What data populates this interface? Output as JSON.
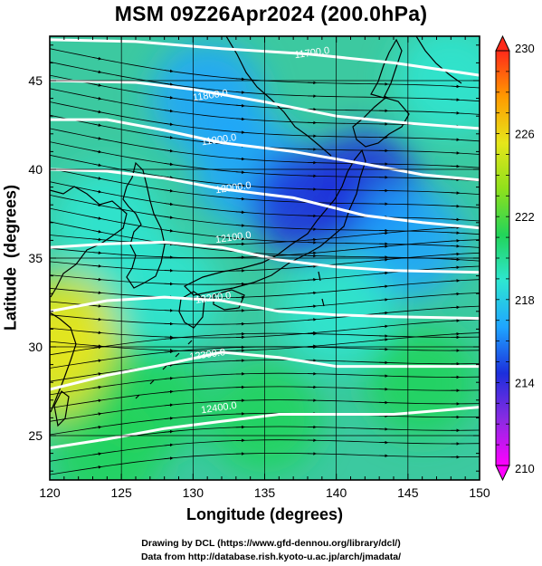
{
  "page": {
    "title": "MSM 09Z26Apr2024 (200.0hPa)",
    "credit_line1": "Drawing by DCL (https://www.gfd-dennou.org/library/dcl/)",
    "credit_line2": "Data from http://database.rish.kyoto-u.ac.jp/arch/jmadata/"
  },
  "chart_data": {
    "type": "heatmap",
    "title": "MSM 09Z26Apr2024 (200.0hPa)",
    "xlabel": "Longitude (degrees)",
    "ylabel": "Latitude  (degrees)",
    "xlim": [
      120,
      150
    ],
    "ylim": [
      22.5,
      47.5
    ],
    "x_ticks": [
      120,
      125,
      130,
      135,
      140,
      145,
      150
    ],
    "y_ticks": [
      25,
      30,
      35,
      40,
      45
    ],
    "grid": true,
    "colorbar": {
      "range": [
        210,
        230
      ],
      "ticks": [
        210,
        214,
        218,
        222,
        226,
        230
      ],
      "colors": [
        "#ff00ff",
        "#8a2be2",
        "#1c2fdc",
        "#1fa5ff",
        "#2ee6d2",
        "#22d45a",
        "#8fe01c",
        "#e6e61a",
        "#ff9a00",
        "#ff2a1a"
      ]
    },
    "temperature_field_note_free": true,
    "temperature_samples": [
      {
        "lon": 121,
        "lat": 29,
        "value": 226
      },
      {
        "lon": 121,
        "lat": 31,
        "value": 225
      },
      {
        "lon": 124,
        "lat": 24,
        "value": 222
      },
      {
        "lon": 127,
        "lat": 27,
        "value": 221
      },
      {
        "lon": 131,
        "lat": 44,
        "value": 216
      },
      {
        "lon": 134,
        "lat": 40,
        "value": 216
      },
      {
        "lon": 138,
        "lat": 38,
        "value": 214
      },
      {
        "lon": 142,
        "lat": 39,
        "value": 214
      },
      {
        "lon": 145,
        "lat": 36,
        "value": 216
      },
      {
        "lon": 148,
        "lat": 45,
        "value": 219
      },
      {
        "lon": 140,
        "lat": 32,
        "value": 218
      },
      {
        "lon": 146,
        "lat": 28,
        "value": 220
      },
      {
        "lon": 135,
        "lat": 26,
        "value": 221
      },
      {
        "lon": 124,
        "lat": 37,
        "value": 219
      },
      {
        "lon": 128,
        "lat": 33,
        "value": 219
      }
    ],
    "contour_labels": [
      "11700.0",
      "11800.0",
      "11900.0",
      "12000.0",
      "12100.0",
      "12200.0",
      "12300.0",
      "12400.0"
    ],
    "contours": [
      {
        "level": 11700,
        "points": [
          [
            120,
            47.3
          ],
          [
            126,
            47.2
          ],
          [
            132,
            46.8
          ],
          [
            138,
            46.5
          ],
          [
            144,
            46.0
          ],
          [
            150,
            45.3
          ]
        ],
        "label": "11700.0",
        "label_at": [
          138.3,
          46.6
        ]
      },
      {
        "level": 11800,
        "points": [
          [
            120,
            45.0
          ],
          [
            126,
            44.9
          ],
          [
            130,
            44.5
          ],
          [
            135,
            43.8
          ],
          [
            140,
            43.0
          ],
          [
            145,
            42.6
          ],
          [
            150,
            42.3
          ]
        ],
        "label": "11800.0",
        "label_at": [
          131.2,
          44.2
        ]
      },
      {
        "level": 11900,
        "points": [
          [
            120,
            42.8
          ],
          [
            124,
            42.8
          ],
          [
            128,
            42.2
          ],
          [
            132,
            41.5
          ],
          [
            137,
            41.0
          ],
          [
            142,
            40.3
          ],
          [
            146,
            39.7
          ],
          [
            150,
            39.4
          ]
        ],
        "label": "11900.0",
        "label_at": [
          131.8,
          41.7
        ]
      },
      {
        "level": 12000,
        "points": [
          [
            120,
            40.0
          ],
          [
            124,
            39.9
          ],
          [
            128,
            39.5
          ],
          [
            132,
            38.9
          ],
          [
            137,
            38.4
          ],
          [
            142,
            37.4
          ],
          [
            146,
            37.0
          ],
          [
            150,
            36.7
          ]
        ],
        "label": "12000.0",
        "label_at": [
          132.8,
          39.0
        ]
      },
      {
        "level": 12100,
        "points": [
          [
            120,
            35.6
          ],
          [
            124,
            35.8
          ],
          [
            128,
            35.9
          ],
          [
            132,
            35.6
          ],
          [
            136,
            34.9
          ],
          [
            140,
            34.5
          ],
          [
            144,
            34.3
          ],
          [
            150,
            34.2
          ]
        ],
        "label": "12100.0",
        "label_at": [
          132.8,
          36.2
        ]
      },
      {
        "level": 12200,
        "points": [
          [
            120,
            32.0
          ],
          [
            124,
            32.6
          ],
          [
            128,
            32.8
          ],
          [
            132,
            32.6
          ],
          [
            136,
            32.0
          ],
          [
            140,
            31.8
          ],
          [
            144,
            31.7
          ],
          [
            150,
            31.6
          ]
        ],
        "label": "12200.0",
        "label_at": [
          131.4,
          32.8
        ]
      },
      {
        "level": 12300,
        "points": [
          [
            120,
            27.6
          ],
          [
            124,
            28.4
          ],
          [
            128,
            29.0
          ],
          [
            132,
            29.7
          ],
          [
            136,
            29.4
          ],
          [
            140,
            28.9
          ],
          [
            144,
            28.9
          ],
          [
            150,
            28.9
          ]
        ],
        "label": "12300.0",
        "label_at": [
          131.0,
          29.6
        ]
      },
      {
        "level": 12400,
        "points": [
          [
            120,
            24.3
          ],
          [
            124,
            24.8
          ],
          [
            128,
            25.4
          ],
          [
            132,
            25.8
          ],
          [
            136,
            26.2
          ],
          [
            140,
            26.2
          ],
          [
            144,
            26.2
          ],
          [
            150,
            26.6
          ]
        ],
        "label": "12400.0",
        "label_at": [
          131.8,
          26.6
        ]
      }
    ]
  }
}
